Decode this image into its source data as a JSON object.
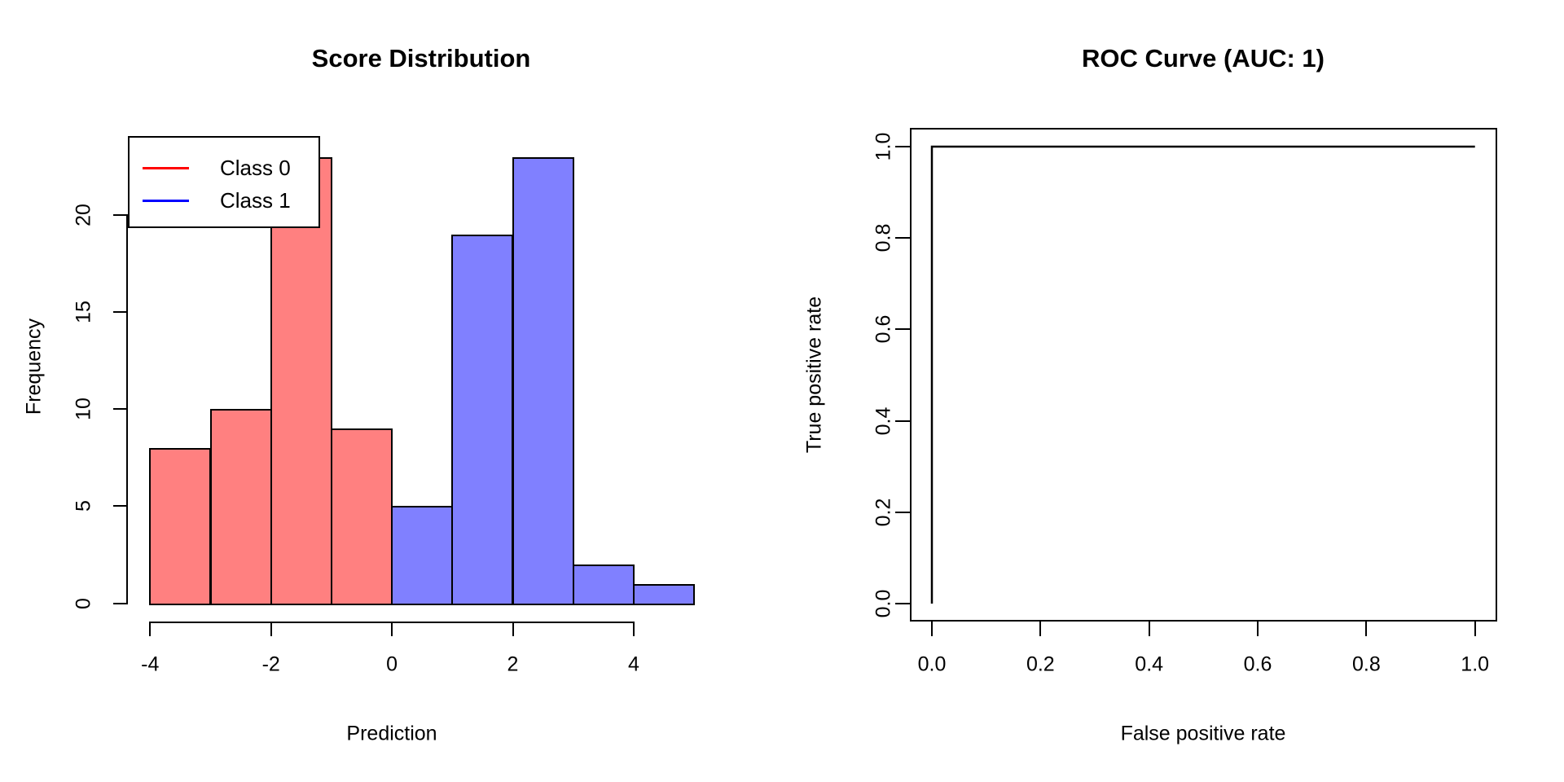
{
  "page": {
    "background": "#FFFFFF",
    "text_color": "#000000"
  },
  "chart_data": [
    {
      "type": "histogram",
      "panel": "left",
      "title": "Score Distribution",
      "xlabel": "Prediction",
      "ylabel": "Frequency",
      "xlim": [
        -4,
        5
      ],
      "ylim": [
        0,
        23
      ],
      "bin_width": 1,
      "xtick_values": [
        -4,
        -2,
        0,
        2,
        4
      ],
      "xtick_labels": [
        "-4",
        "-2",
        "0",
        "2",
        "4"
      ],
      "ytick_values": [
        0,
        5,
        10,
        15,
        20
      ],
      "ytick_labels": [
        "0",
        "5",
        "10",
        "15",
        "20"
      ],
      "bar_border_color": "#000000",
      "series": [
        {
          "name": "Class 0",
          "fill": "#FF8080",
          "bins": [
            {
              "x0": -4,
              "x1": -3,
              "count": 8
            },
            {
              "x0": -3,
              "x1": -2,
              "count": 10
            },
            {
              "x0": -2,
              "x1": -1,
              "count": 23
            },
            {
              "x0": -1,
              "x1": 0,
              "count": 9
            }
          ]
        },
        {
          "name": "Class 1",
          "fill": "#8080FF",
          "bins": [
            {
              "x0": 0,
              "x1": 1,
              "count": 5
            },
            {
              "x0": 1,
              "x1": 2,
              "count": 19
            },
            {
              "x0": 2,
              "x1": 3,
              "count": 23
            },
            {
              "x0": 3,
              "x1": 4,
              "count": 2
            },
            {
              "x0": 4,
              "x1": 5,
              "count": 1
            }
          ]
        }
      ],
      "legend": {
        "position": "topleft",
        "items": [
          {
            "label": "Class 0",
            "line_color": "#FF0000"
          },
          {
            "label": "Class 1",
            "line_color": "#0000FF"
          }
        ]
      }
    },
    {
      "type": "line",
      "panel": "right",
      "title": "ROC Curve (AUC: 1)",
      "auc": 1,
      "xlabel": "False positive rate",
      "ylabel": "True positive rate",
      "xlim": [
        0,
        1
      ],
      "ylim": [
        0,
        1
      ],
      "xtick_values": [
        0,
        0.2,
        0.4,
        0.6,
        0.8,
        1
      ],
      "xtick_labels": [
        "0.0",
        "0.2",
        "0.4",
        "0.6",
        "0.8",
        "1.0"
      ],
      "ytick_values": [
        0,
        0.2,
        0.4,
        0.6,
        0.8,
        1
      ],
      "ytick_labels": [
        "0.0",
        "0.2",
        "0.4",
        "0.6",
        "0.8",
        "1.0"
      ],
      "line_color": "#000000",
      "grid": false,
      "points": [
        [
          0,
          0
        ],
        [
          0,
          1
        ],
        [
          1,
          1
        ]
      ]
    }
  ]
}
